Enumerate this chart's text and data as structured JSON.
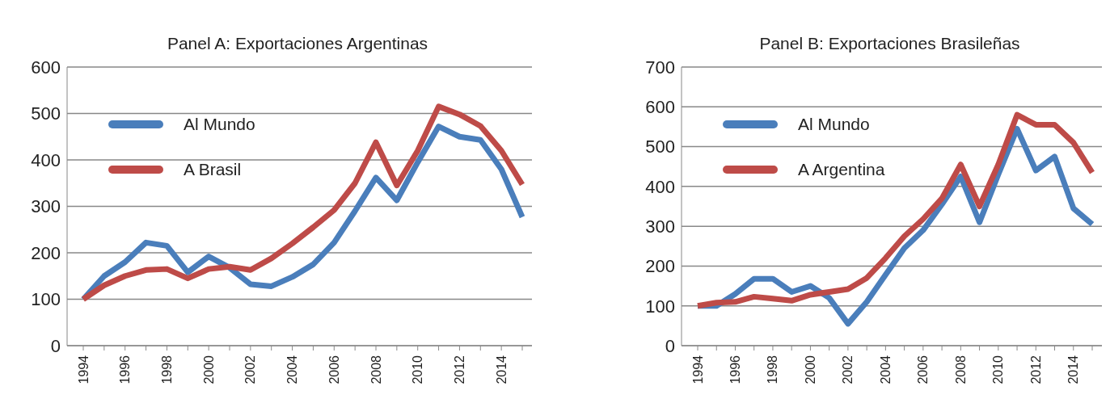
{
  "chart_data": [
    {
      "type": "line",
      "title": "Panel A: Exportaciones Argentinas",
      "categories": [
        "1994",
        null,
        "1996",
        null,
        "1998",
        null,
        "2000",
        null,
        "2002",
        null,
        "2004",
        null,
        "2006",
        null,
        "2008",
        null,
        "2010",
        null,
        "2012",
        null,
        "2014",
        null
      ],
      "series": [
        {
          "name": "Al Mundo",
          "color": "#4a7ebb",
          "values": [
            100,
            150,
            180,
            222,
            215,
            158,
            192,
            168,
            132,
            128,
            148,
            175,
            222,
            290,
            362,
            313,
            395,
            472,
            450,
            443,
            380,
            277
          ]
        },
        {
          "name": "A Brasil",
          "color": "#be4b48",
          "values": [
            100,
            130,
            150,
            163,
            165,
            145,
            165,
            170,
            163,
            188,
            220,
            255,
            292,
            350,
            438,
            345,
            420,
            515,
            498,
            473,
            420,
            347
          ]
        }
      ],
      "ylim": [
        0,
        600
      ],
      "yticks": [
        0,
        100,
        200,
        300,
        400,
        500,
        600
      ],
      "grid": "y",
      "legend": "top left",
      "marker": "none"
    },
    {
      "type": "line",
      "title": "Panel B: Exportaciones Brasileñas",
      "categories": [
        "1994",
        null,
        "1996",
        null,
        "1998",
        null,
        "2000",
        null,
        "2002",
        null,
        "2004",
        null,
        "2006",
        null,
        "2008",
        null,
        "2010",
        null,
        "2012",
        null,
        "2014",
        null
      ],
      "series": [
        {
          "name": "Al Mundo",
          "color": "#4a7ebb",
          "values": [
            100,
            100,
            130,
            168,
            168,
            135,
            150,
            120,
            55,
            110,
            178,
            245,
            290,
            355,
            425,
            310,
            430,
            545,
            440,
            475,
            345,
            305
          ]
        },
        {
          "name": "A Argentina",
          "color": "#be4b48",
          "values": [
            100,
            108,
            110,
            123,
            118,
            113,
            128,
            135,
            142,
            170,
            220,
            275,
            318,
            370,
            455,
            350,
            455,
            580,
            555,
            555,
            510,
            435
          ]
        }
      ],
      "ylim": [
        0,
        700
      ],
      "yticks": [
        0,
        100,
        200,
        300,
        400,
        500,
        600,
        700
      ],
      "grid": "y",
      "legend": "top left",
      "marker": "none"
    }
  ]
}
